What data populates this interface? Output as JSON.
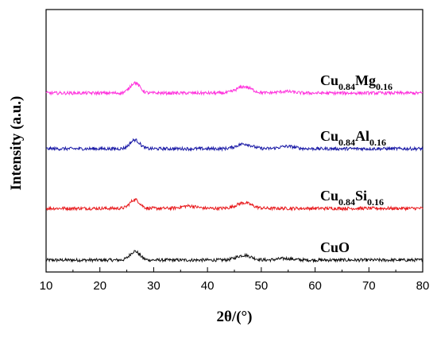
{
  "chart_data": {
    "type": "line",
    "xlabel": "2θ/(°)",
    "ylabel": "Intensity (a.u.)",
    "xlim": [
      10,
      80
    ],
    "x_ticks": [
      "10",
      "20",
      "30",
      "40",
      "50",
      "60",
      "70",
      "80"
    ],
    "y_ticks_shown": false,
    "grid": false,
    "legend": "none (labels placed above each trace)",
    "series": [
      {
        "base": "CuO",
        "dopant": "",
        "sub_cu": "",
        "sub_dopant": "",
        "color": "#111111",
        "offset": 0,
        "peaks": [
          [
            26.5,
            11
          ],
          [
            46.8,
            6
          ],
          [
            54.5,
            2
          ]
        ]
      },
      {
        "base": "Cu",
        "sub_cu": "0.84",
        "dopant": "Si",
        "sub_dopant": "0.16",
        "color": "#e8191c",
        "offset": 65,
        "peaks": [
          [
            26.5,
            11
          ],
          [
            36.5,
            3
          ],
          [
            46.8,
            7
          ]
        ]
      },
      {
        "base": "Cu",
        "sub_cu": "0.84",
        "dopant": "Al",
        "sub_dopant": "0.16",
        "color": "#1a1aa6",
        "offset": 140,
        "peaks": [
          [
            26.5,
            11
          ],
          [
            46.8,
            6
          ],
          [
            54.8,
            3
          ]
        ]
      },
      {
        "base": "Cu",
        "sub_cu": "0.84",
        "dopant": "Mg",
        "sub_dopant": "0.16",
        "color": "#ff33dd",
        "offset": 210,
        "peaks": [
          [
            26.5,
            13
          ],
          [
            46.8,
            8
          ],
          [
            54.5,
            2
          ]
        ]
      }
    ]
  }
}
